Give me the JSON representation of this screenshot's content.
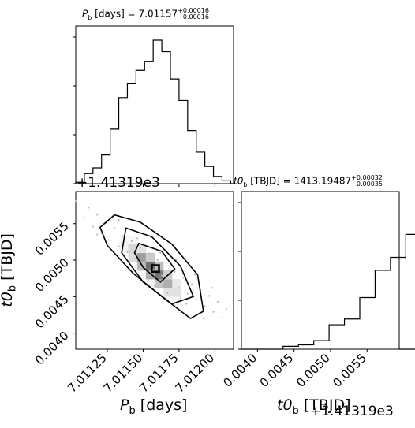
{
  "chart_data": [
    {
      "type": "histogram",
      "panel": "marginal-pb",
      "title": {
        "symbol": "P",
        "sub": "b",
        "unit": "[days]",
        "value": "7.01157",
        "plus": "+0.00016",
        "minus": "−0.00016"
      },
      "bins": [
        7.01103,
        7.01109,
        7.01115,
        7.01121,
        7.01127,
        7.01133,
        7.01139,
        7.01145,
        7.01151,
        7.01157,
        7.01163,
        7.01169,
        7.01175,
        7.01181,
        7.01187,
        7.01193,
        7.01199,
        7.01205,
        7.01211
      ],
      "counts": [
        0.01,
        0.07,
        0.11,
        0.2,
        0.38,
        0.6,
        0.7,
        0.79,
        0.85,
        1.0,
        0.92,
        0.73,
        0.58,
        0.37,
        0.22,
        0.12,
        0.05,
        0.02
      ]
    },
    {
      "type": "histogram",
      "panel": "marginal-t0b",
      "title": {
        "symbol": "t0",
        "sub": "b",
        "unit": "[TBJD]",
        "value": "1413.19487",
        "plus": "+0.00032",
        "minus": "−0.00035"
      },
      "bins": [
        4.35,
        4.56,
        4.77,
        4.98,
        5.19,
        5.4,
        5.61,
        5.82,
        6.03,
        6.24,
        6.45,
        6.66,
        6.87,
        7.08,
        7.29,
        7.5,
        7.71,
        7.92,
        8.13
      ],
      "counts": [
        0.02,
        0.03,
        0.06,
        0.17,
        0.21,
        0.36,
        0.55,
        0.64,
        0.8,
        0.93,
        0.95,
        0.92,
        0.73,
        0.5,
        0.37,
        0.22,
        0.08,
        0.06
      ],
      "bin_offset": 0.001
    },
    {
      "type": "scatter",
      "panel": "joint",
      "density": "2d-histogram-with-contours",
      "grid": false,
      "correlation": "negative",
      "points": [
        [
          7.01103,
          0.00581
        ],
        [
          7.01109,
          0.00558
        ],
        [
          7.01112,
          0.00572
        ],
        [
          7.01115,
          0.00546
        ],
        [
          7.01118,
          0.00562
        ],
        [
          7.01121,
          0.00537
        ],
        [
          7.01124,
          0.00551
        ],
        [
          7.01127,
          0.00527
        ],
        [
          7.0113,
          0.00544
        ],
        [
          7.01133,
          0.00519
        ],
        [
          7.01136,
          0.00533
        ],
        [
          7.01139,
          0.00511
        ],
        [
          7.01142,
          0.00526
        ],
        [
          7.01145,
          0.00502
        ],
        [
          7.01148,
          0.00517
        ],
        [
          7.01151,
          0.00495
        ],
        [
          7.01154,
          0.00509
        ],
        [
          7.01157,
          0.00487
        ],
        [
          7.0116,
          0.005
        ],
        [
          7.01163,
          0.00479
        ],
        [
          7.01166,
          0.00492
        ],
        [
          7.01169,
          0.00471
        ],
        [
          7.01172,
          0.00484
        ],
        [
          7.01175,
          0.00462
        ],
        [
          7.01178,
          0.00476
        ],
        [
          7.01181,
          0.00454
        ],
        [
          7.01184,
          0.00467
        ],
        [
          7.01187,
          0.00446
        ],
        [
          7.0119,
          0.00459
        ],
        [
          7.01193,
          0.00437
        ],
        [
          7.01196,
          0.00451
        ],
        [
          7.01199,
          0.00429
        ],
        [
          7.01202,
          0.00443
        ],
        [
          7.01205,
          0.00421
        ],
        [
          7.01208,
          0.00433
        ],
        [
          7.01118,
          0.00535
        ],
        [
          7.01129,
          0.0056
        ],
        [
          7.0114,
          0.00498
        ],
        [
          7.01146,
          0.0053
        ],
        [
          7.0115,
          0.0047
        ],
        [
          7.01162,
          0.0051
        ],
        [
          7.01167,
          0.00455
        ],
        [
          7.01173,
          0.005
        ],
        [
          7.0118,
          0.0044
        ],
        [
          7.01186,
          0.0048
        ],
        [
          7.01192,
          0.0042
        ],
        [
          7.01198,
          0.00462
        ],
        [
          7.01133,
          0.00555
        ],
        [
          7.01158,
          0.00465
        ],
        [
          7.01176,
          0.00448
        ]
      ],
      "contours": [
        [
          [
            7.0113,
            0.00562
          ],
          [
            7.01148,
            0.00552
          ],
          [
            7.0117,
            0.00522
          ],
          [
            7.01188,
            0.0048
          ],
          [
            7.01192,
            0.0043
          ],
          [
            7.01183,
            0.0042
          ],
          [
            7.01163,
            0.0045
          ],
          [
            7.01143,
            0.00482
          ],
          [
            7.01125,
            0.0052
          ],
          [
            7.0112,
            0.00545
          ]
        ],
        [
          [
            7.01138,
            0.00544
          ],
          [
            7.01156,
            0.00532
          ],
          [
            7.01176,
            0.00492
          ],
          [
            7.01185,
            0.0045
          ],
          [
            7.0117,
            0.0044
          ],
          [
            7.0115,
            0.0047
          ],
          [
            7.01135,
            0.0051
          ]
        ],
        [
          [
            7.01147,
            0.00523
          ],
          [
            7.01163,
            0.00512
          ],
          [
            7.01172,
            0.00488
          ],
          [
            7.01162,
            0.0047
          ],
          [
            7.0115,
            0.0049
          ],
          [
            7.01144,
            0.0051
          ]
        ],
        [
          [
            7.01156,
            0.00493
          ],
          [
            7.01161,
            0.00493
          ],
          [
            7.01161,
            0.00484
          ],
          [
            7.01156,
            0.00484
          ]
        ]
      ],
      "xlim": [
        7.01103,
        7.01213
      ],
      "ylim": [
        0.00378,
        0.00594
      ],
      "xlabel": {
        "symbol": "P",
        "sub": "b",
        "unit": "[days]"
      },
      "ylabel": {
        "symbol": "t0",
        "sub": "b",
        "unit": "[TBJD]"
      },
      "x_ticks": [
        7.01125,
        7.0115,
        7.01175,
        7.012
      ],
      "x_tick_labels": [
        "7.01125",
        "7.01150",
        "7.01175",
        "7.01200"
      ],
      "y_ticks": [
        0.004,
        0.0045,
        0.005,
        0.0055
      ],
      "y_tick_labels": [
        "0.0040",
        "0.0045",
        "0.0050",
        "0.0055"
      ],
      "offset_label": "+1.41319e3"
    }
  ],
  "br_x_axis": {
    "xlim": [
      0.00378,
      0.00594
    ],
    "x_ticks": [
      0.004,
      0.0045,
      0.005,
      0.0055
    ],
    "x_tick_labels": [
      "0.0040",
      "0.0045",
      "0.0050",
      "0.0055"
    ],
    "xlabel": {
      "symbol": "t0",
      "sub": "b",
      "unit": "[TBJD]"
    },
    "offset_label": "+1.41319e3"
  },
  "style": {
    "line_color": "#000000",
    "density_color": "#000000",
    "background": "#ffffff"
  }
}
